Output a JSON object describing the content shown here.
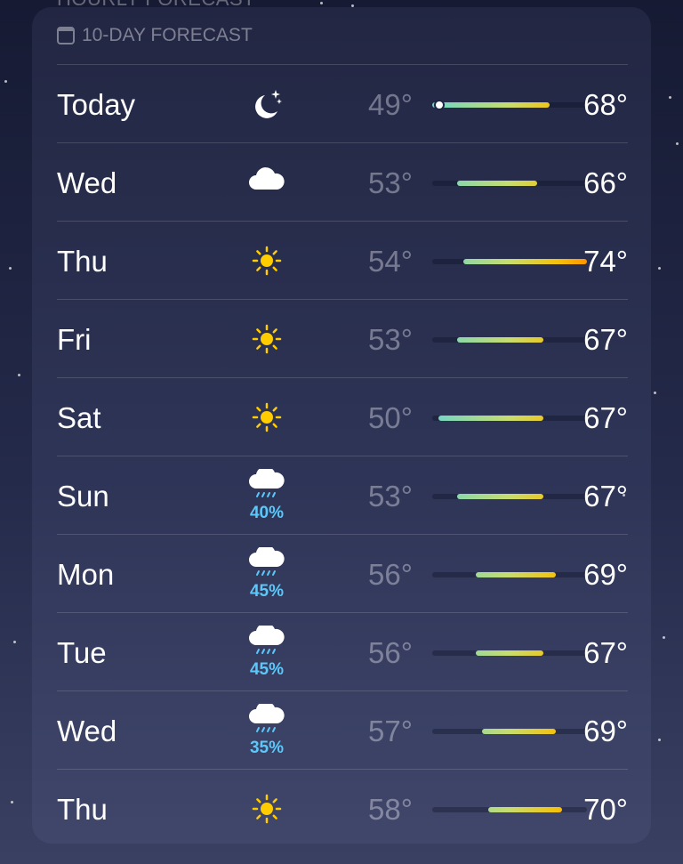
{
  "previous_section": "HOURLY FORECAST",
  "header": {
    "title": "10-DAY FORECAST",
    "icon": "calendar-icon"
  },
  "scale": {
    "min": 49,
    "max": 74
  },
  "colors": {
    "precip": "#5ac8fa",
    "cool": "#6fd6c8",
    "mild": "#c8dc6e",
    "warm": "#f4c20d",
    "hot": "#ff9500"
  },
  "days": [
    {
      "day": "Today",
      "icon": "moon-stars-icon",
      "precip": "",
      "low": "49°",
      "high": "68°",
      "lo": 49,
      "hi": 68,
      "current": 49
    },
    {
      "day": "Wed",
      "icon": "cloud-icon",
      "precip": "",
      "low": "53°",
      "high": "66°",
      "lo": 53,
      "hi": 66
    },
    {
      "day": "Thu",
      "icon": "sun-icon",
      "precip": "",
      "low": "54°",
      "high": "74°",
      "lo": 54,
      "hi": 74
    },
    {
      "day": "Fri",
      "icon": "sun-icon",
      "precip": "",
      "low": "53°",
      "high": "67°",
      "lo": 53,
      "hi": 67
    },
    {
      "day": "Sat",
      "icon": "sun-icon",
      "precip": "",
      "low": "50°",
      "high": "67°",
      "lo": 50,
      "hi": 67
    },
    {
      "day": "Sun",
      "icon": "cloud-rain-icon",
      "precip": "40%",
      "low": "53°",
      "high": "67°",
      "lo": 53,
      "hi": 67
    },
    {
      "day": "Mon",
      "icon": "cloud-rain-icon",
      "precip": "45%",
      "low": "56°",
      "high": "69°",
      "lo": 56,
      "hi": 69
    },
    {
      "day": "Tue",
      "icon": "cloud-rain-icon",
      "precip": "45%",
      "low": "56°",
      "high": "67°",
      "lo": 56,
      "hi": 67
    },
    {
      "day": "Wed",
      "icon": "cloud-rain-icon",
      "precip": "35%",
      "low": "57°",
      "high": "69°",
      "lo": 57,
      "hi": 69
    },
    {
      "day": "Thu",
      "icon": "sun-icon",
      "precip": "",
      "low": "58°",
      "high": "70°",
      "lo": 58,
      "hi": 70
    }
  ]
}
